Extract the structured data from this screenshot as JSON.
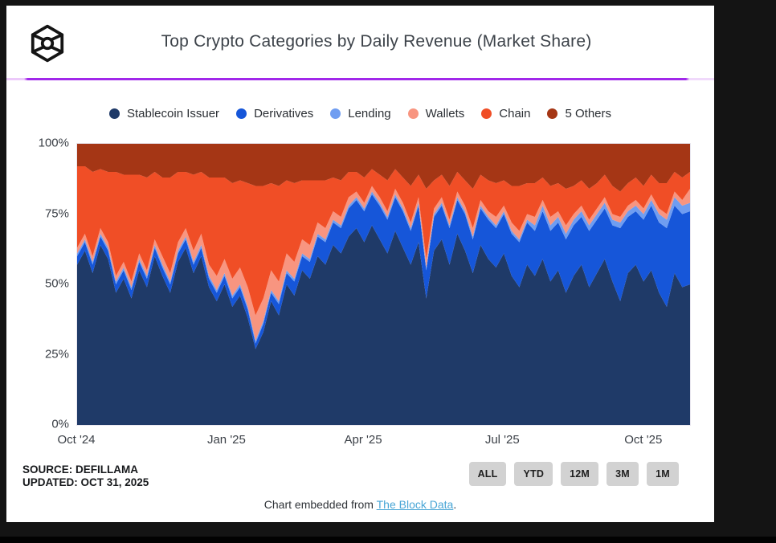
{
  "header": {
    "title": "Top Crypto Categories by Daily Revenue (Market Share)",
    "logo": "the-block-cube-logo",
    "divider_color": "#a128ea"
  },
  "chart_data": {
    "type": "area",
    "stacking": "percent",
    "title": "Top Crypto Categories by Daily Revenue (Market Share)",
    "grid": false,
    "legend_position": "top",
    "ylim": [
      0,
      100
    ],
    "x_range": [
      "Oct 2024",
      "Nov 2025"
    ],
    "x_ticks": [
      {
        "label": "Oct '24",
        "pos": 0.0
      },
      {
        "label": "Jan '25",
        "pos": 0.245
      },
      {
        "label": "Apr '25",
        "pos": 0.468
      },
      {
        "label": "Jul '25",
        "pos": 0.695
      },
      {
        "label": "Oct '25",
        "pos": 0.925
      }
    ],
    "y_ticks": [
      {
        "label": "0%",
        "value": 0
      },
      {
        "label": "25%",
        "value": 25
      },
      {
        "label": "50%",
        "value": 50
      },
      {
        "label": "75%",
        "value": 75
      },
      {
        "label": "100%",
        "value": 100
      }
    ],
    "series": [
      {
        "name": "Stablecoin Issuer",
        "color": "#1f3a68",
        "values": [
          57,
          62,
          54,
          64,
          59,
          47,
          52,
          45,
          55,
          49,
          60,
          53,
          47,
          58,
          63,
          54,
          60,
          49,
          44,
          50,
          42,
          46,
          38,
          27,
          33,
          44,
          39,
          50,
          46,
          55,
          52,
          60,
          57,
          64,
          61,
          67,
          70,
          65,
          71,
          66,
          61,
          69,
          63,
          57,
          65,
          45,
          62,
          66,
          57,
          68,
          62,
          54,
          64,
          59,
          56,
          61,
          53,
          49,
          57,
          53,
          59,
          51,
          55,
          47,
          53,
          57,
          49,
          54,
          59,
          51,
          44,
          54,
          57,
          51,
          55,
          47,
          42,
          54,
          49,
          50
        ]
      },
      {
        "name": "Derivatives",
        "color": "#1656d9",
        "values": [
          3,
          3,
          3,
          3,
          3,
          3,
          3,
          3,
          3,
          3,
          3,
          3,
          3,
          3,
          3,
          3,
          3,
          3,
          3,
          3,
          3,
          3,
          3,
          2,
          3,
          3,
          4,
          4,
          5,
          5,
          6,
          7,
          8,
          8,
          9,
          10,
          10,
          11,
          11,
          12,
          12,
          12,
          13,
          12,
          13,
          10,
          12,
          12,
          13,
          12,
          13,
          12,
          13,
          14,
          14,
          14,
          15,
          16,
          15,
          16,
          17,
          18,
          17,
          19,
          18,
          17,
          20,
          19,
          18,
          20,
          26,
          20,
          19,
          22,
          23,
          25,
          28,
          24,
          26,
          26
        ]
      },
      {
        "name": "Lending",
        "color": "#6f9df1",
        "values": [
          1,
          1,
          1,
          1,
          1,
          1,
          1,
          1,
          1,
          1,
          1,
          1,
          1,
          1,
          1,
          1,
          1,
          1,
          1,
          1,
          1,
          1,
          1,
          1,
          1,
          1,
          1,
          1,
          1,
          1,
          1,
          1,
          1,
          1,
          1,
          1,
          1,
          1,
          1,
          1,
          1,
          1,
          1,
          1,
          1,
          1,
          1,
          1,
          1,
          1,
          1,
          1,
          1,
          1,
          1,
          1,
          1,
          1,
          1,
          2,
          2,
          2,
          2,
          2,
          2,
          2,
          2,
          2,
          2,
          2,
          2,
          2,
          2,
          2,
          2,
          3,
          3,
          3,
          3,
          3
        ]
      },
      {
        "name": "Wallets",
        "color": "#f89580",
        "values": [
          2,
          2,
          2,
          2,
          2,
          2,
          2,
          2,
          2,
          2,
          2,
          3,
          3,
          3,
          3,
          4,
          4,
          4,
          5,
          5,
          6,
          6,
          7,
          9,
          8,
          7,
          7,
          6,
          6,
          5,
          5,
          4,
          4,
          3,
          3,
          3,
          2,
          2,
          2,
          2,
          2,
          2,
          2,
          2,
          2,
          3,
          2,
          2,
          2,
          2,
          2,
          3,
          2,
          2,
          3,
          2,
          3,
          3,
          2,
          3,
          2,
          3,
          2,
          3,
          2,
          2,
          2,
          2,
          2,
          2,
          2,
          2,
          2,
          2,
          2,
          2,
          2,
          2,
          2,
          5
        ]
      },
      {
        "name": "Chain",
        "color": "#f04e26",
        "values": [
          29,
          24,
          30,
          21,
          25,
          37,
          31,
          38,
          28,
          33,
          24,
          28,
          34,
          25,
          20,
          27,
          22,
          31,
          35,
          29,
          34,
          31,
          37,
          46,
          40,
          31,
          34,
          26,
          28,
          21,
          23,
          15,
          17,
          12,
          13,
          9,
          7,
          9,
          6,
          8,
          11,
          7,
          9,
          13,
          8,
          25,
          10,
          8,
          12,
          7,
          9,
          14,
          9,
          11,
          12,
          9,
          13,
          16,
          11,
          12,
          8,
          11,
          10,
          13,
          10,
          9,
          11,
          9,
          8,
          10,
          9,
          8,
          8,
          8,
          7,
          9,
          11,
          7,
          8,
          6
        ]
      },
      {
        "name": "5 Others",
        "color": "#a53615",
        "values": [
          8,
          8,
          10,
          9,
          10,
          10,
          11,
          11,
          11,
          12,
          10,
          12,
          12,
          10,
          10,
          11,
          10,
          12,
          12,
          12,
          14,
          13,
          14,
          15,
          15,
          14,
          15,
          13,
          14,
          13,
          13,
          13,
          13,
          12,
          13,
          10,
          10,
          12,
          9,
          11,
          13,
          9,
          12,
          15,
          11,
          16,
          13,
          11,
          15,
          10,
          13,
          16,
          11,
          13,
          14,
          13,
          15,
          15,
          14,
          14,
          12,
          15,
          14,
          16,
          15,
          13,
          16,
          14,
          11,
          15,
          17,
          14,
          12,
          15,
          11,
          14,
          14,
          10,
          12,
          10
        ]
      }
    ]
  },
  "footer": {
    "source_line": "SOURCE: DEFILLAMA",
    "updated_line": "UPDATED: OCT 31, 2025",
    "range_buttons": [
      "ALL",
      "YTD",
      "12M",
      "3M",
      "1M"
    ]
  },
  "embed": {
    "prefix": "Chart embedded from ",
    "link_text": "The Block Data",
    "suffix": ".",
    "link_color": "#49a6d6"
  }
}
